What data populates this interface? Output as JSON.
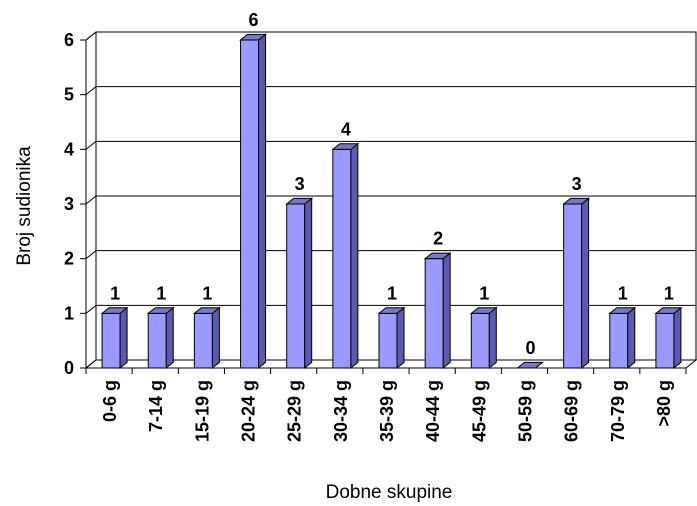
{
  "chart_data": {
    "type": "bar",
    "title": "",
    "xlabel": "Dobne skupine",
    "ylabel": "Broj sudionika",
    "categories": [
      "0-6 g",
      "7-14 g",
      "15-19 g",
      "20-24 g",
      "25-29 g",
      "30-34 g",
      "35-39 g",
      "40-44 g",
      "45-49 g",
      "50-59 g",
      "60-69 g",
      "70-79 g",
      ">80 g"
    ],
    "values": [
      1,
      1,
      1,
      6,
      3,
      4,
      1,
      2,
      1,
      0,
      3,
      1,
      1
    ],
    "data_labels": [
      "1",
      "1",
      "1",
      "6",
      "3",
      "4",
      "1",
      "2",
      "1",
      "0",
      "3",
      "1",
      "1"
    ],
    "ylim": [
      0,
      6
    ],
    "yticks": [
      "0",
      "1",
      "2",
      "3",
      "4",
      "5",
      "6"
    ],
    "grid": true,
    "bar_style": "3d",
    "colors": {
      "bar_front": "#9999FF",
      "bar_side": "#5A5AB0",
      "bar_top": "#7777CC",
      "grid": "#000000"
    }
  }
}
